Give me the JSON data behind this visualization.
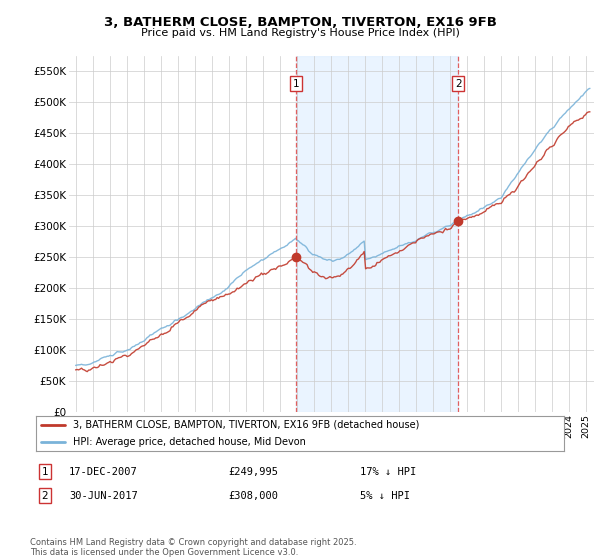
{
  "title_line1": "3, BATHERM CLOSE, BAMPTON, TIVERTON, EX16 9FB",
  "title_line2": "Price paid vs. HM Land Registry's House Price Index (HPI)",
  "ylim": [
    0,
    575000
  ],
  "yticks": [
    0,
    50000,
    100000,
    150000,
    200000,
    250000,
    300000,
    350000,
    400000,
    450000,
    500000,
    550000
  ],
  "ytick_labels": [
    "£0",
    "£50K",
    "£100K",
    "£150K",
    "£200K",
    "£250K",
    "£300K",
    "£350K",
    "£400K",
    "£450K",
    "£500K",
    "£550K"
  ],
  "hpi_color": "#7ab3d9",
  "price_color": "#c0392b",
  "shade_color": "#ddeeff",
  "vline_color": "#e06060",
  "marker1_year": 2007.96,
  "marker1_price": 249995,
  "marker1_hpi": 300000,
  "marker2_year": 2017.5,
  "marker2_price": 308000,
  "marker2_hpi": 325000,
  "legend_label1": "3, BATHERM CLOSE, BAMPTON, TIVERTON, EX16 9FB (detached house)",
  "legend_label2": "HPI: Average price, detached house, Mid Devon",
  "marker1_label": "1",
  "marker1_date_str": "17-DEC-2007",
  "marker1_price_str": "£249,995",
  "marker1_hpi_str": "17% ↓ HPI",
  "marker2_label": "2",
  "marker2_date_str": "30-JUN-2017",
  "marker2_price_str": "£308,000",
  "marker2_hpi_str": "5% ↓ HPI",
  "footnote": "Contains HM Land Registry data © Crown copyright and database right 2025.\nThis data is licensed under the Open Government Licence v3.0.",
  "background_color": "#ffffff",
  "grid_color": "#cccccc",
  "xstart": 1995,
  "xend": 2025,
  "n_months": 361
}
